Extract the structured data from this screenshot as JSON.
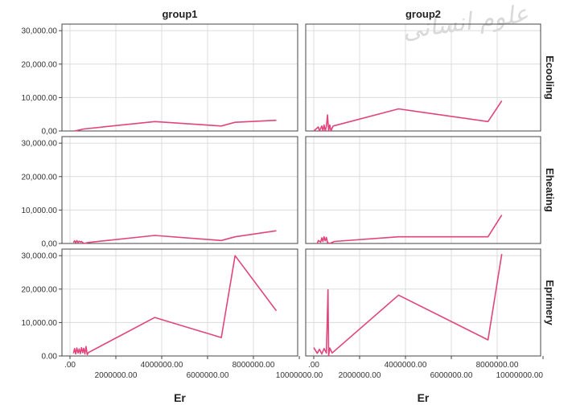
{
  "chart_data": {
    "type": "line",
    "panel_columns": [
      "group1",
      "group2"
    ],
    "panel_rows": [
      "Ecooling",
      "Eheating",
      "Eprimery"
    ],
    "xlabel": "Er",
    "x_range": [
      0,
      10000000
    ],
    "y_range": [
      0,
      31000
    ],
    "y_ticks": [
      0,
      10000,
      20000,
      30000
    ],
    "y_tick_labels": [
      "0.00",
      "10,000.00",
      "20,000.00",
      "30,000.00"
    ],
    "y_tick_labels_compact": [
      "0,00",
      "10,000.00",
      "20,000.00",
      "30,000.00"
    ],
    "x_ticks": [
      0,
      2000000,
      4000000,
      6000000,
      8000000,
      10000000
    ],
    "x_tick_labels": [
      ".00",
      "2000000.00",
      "4000000.00",
      "6000000.00",
      "8000000.00",
      "10000000.00"
    ],
    "x_tick_label_row": [
      "upper",
      "lower",
      "upper",
      "lower",
      "upper",
      "lower"
    ],
    "gridlines": true,
    "line_color": "#e0457b",
    "grid_color": "#dcdcdc",
    "series": [
      {
        "group": "group1",
        "variable": "Ecooling",
        "x": [
          200000,
          400000,
          600000,
          3700000,
          6600000,
          7200000,
          9000000
        ],
        "y": [
          0,
          300,
          600,
          2800,
          1500,
          2600,
          3200
        ]
      },
      {
        "group": "group2",
        "variable": "Ecooling",
        "x": [
          0,
          200000,
          250000,
          350000,
          400000,
          450000,
          500000,
          550000,
          600000,
          650000,
          700000,
          750000,
          800000,
          850000,
          3700000,
          7600000,
          8200000
        ],
        "y": [
          0,
          1200,
          0,
          1500,
          0,
          1800,
          0,
          1400,
          4800,
          0,
          1800,
          0,
          900,
          1500,
          6600,
          2800,
          9000
        ]
      },
      {
        "group": "group1",
        "variable": "Eheating",
        "x": [
          150000,
          200000,
          250000,
          300000,
          350000,
          400000,
          450000,
          500000,
          600000,
          800000,
          3700000,
          6600000,
          7200000,
          9000000
        ],
        "y": [
          300,
          800,
          200,
          900,
          300,
          700,
          400,
          600,
          0,
          300,
          2400,
          900,
          2000,
          3800
        ]
      },
      {
        "group": "group2",
        "variable": "Eheating",
        "x": [
          150000,
          200000,
          300000,
          350000,
          400000,
          450000,
          500000,
          550000,
          600000,
          700000,
          900000,
          3700000,
          7600000,
          8200000
        ],
        "y": [
          0,
          900,
          400,
          1700,
          600,
          2000,
          800,
          1800,
          300,
          0,
          600,
          2000,
          2000,
          8500
        ]
      },
      {
        "group": "group1",
        "variable": "Eprimery",
        "x": [
          150000,
          200000,
          250000,
          300000,
          350000,
          400000,
          450000,
          500000,
          550000,
          600000,
          650000,
          700000,
          750000,
          800000,
          3700000,
          6600000,
          7200000,
          9000000
        ],
        "y": [
          800,
          2200,
          600,
          2400,
          900,
          2100,
          700,
          2500,
          1000,
          2300,
          600,
          2800,
          400,
          1000,
          11500,
          5500,
          30000,
          13500
        ]
      },
      {
        "group": "group2",
        "variable": "Eprimery",
        "x": [
          0,
          150000,
          250000,
          350000,
          450000,
          550000,
          620000,
          650000,
          700000,
          800000,
          3700000,
          7600000,
          8200000
        ],
        "y": [
          2500,
          800,
          2000,
          600,
          2200,
          900,
          19800,
          0,
          2400,
          900,
          18200,
          4800,
          30500
        ]
      }
    ]
  }
}
